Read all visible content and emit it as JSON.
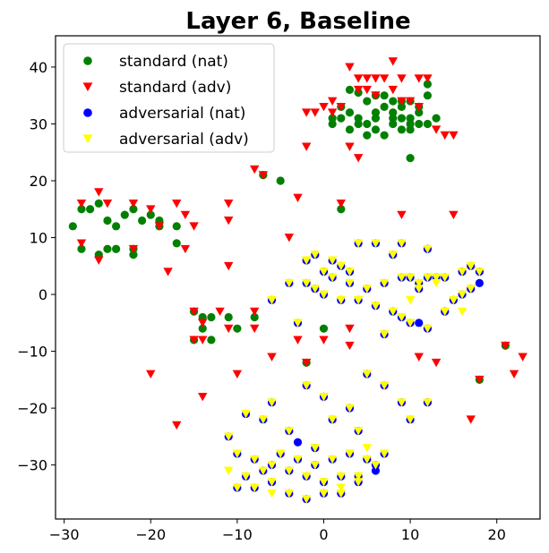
{
  "chart_data": {
    "type": "scatter",
    "title": "Layer 6, Baseline",
    "xlabel": "",
    "ylabel": "",
    "xlim": [
      -31,
      25
    ],
    "ylim": [
      -39.5,
      45.5
    ],
    "xticks": [
      -30,
      -20,
      -10,
      0,
      10,
      20
    ],
    "yticks": [
      -30,
      -20,
      -10,
      0,
      10,
      20,
      30,
      40
    ],
    "grid": false,
    "legend_placement": "top-left",
    "series": [
      {
        "name": "standard (nat)",
        "marker": "circle",
        "color": "#008000",
        "points": [
          [
            3,
            36
          ],
          [
            4,
            35.5
          ],
          [
            5,
            34
          ],
          [
            6,
            35
          ],
          [
            7,
            35
          ],
          [
            8,
            34
          ],
          [
            9,
            33
          ],
          [
            10,
            34
          ],
          [
            11,
            33
          ],
          [
            12,
            35
          ],
          [
            12,
            37
          ],
          [
            6,
            32
          ],
          [
            7,
            33
          ],
          [
            8,
            32
          ],
          [
            9,
            31
          ],
          [
            10,
            30
          ],
          [
            11,
            30
          ],
          [
            12,
            30
          ],
          [
            13,
            31
          ],
          [
            2,
            33
          ],
          [
            3,
            32
          ],
          [
            4,
            31
          ],
          [
            5,
            30
          ],
          [
            6,
            29
          ],
          [
            7,
            28
          ],
          [
            8,
            30
          ],
          [
            9,
            29
          ],
          [
            10,
            29
          ],
          [
            1,
            31
          ],
          [
            1,
            30
          ],
          [
            2,
            31
          ],
          [
            3,
            29
          ],
          [
            4,
            30
          ],
          [
            5,
            28
          ],
          [
            6,
            31
          ],
          [
            8,
            31
          ],
          [
            9,
            34
          ],
          [
            10,
            31
          ],
          [
            11,
            32
          ],
          [
            -29,
            12
          ],
          [
            -28,
            15
          ],
          [
            -27,
            15
          ],
          [
            -26,
            16
          ],
          [
            -25,
            13
          ],
          [
            -24,
            12
          ],
          [
            -23,
            14
          ],
          [
            -22,
            15
          ],
          [
            -21,
            13
          ],
          [
            -20,
            14
          ],
          [
            -19,
            13
          ],
          [
            -19,
            12
          ],
          [
            -28,
            8
          ],
          [
            -26,
            7
          ],
          [
            -25,
            8
          ],
          [
            -24,
            8
          ],
          [
            -22,
            7
          ],
          [
            -22,
            8
          ],
          [
            -17,
            9
          ],
          [
            -17,
            12
          ],
          [
            -7,
            21
          ],
          [
            -5,
            20
          ],
          [
            10,
            24
          ],
          [
            2,
            15
          ],
          [
            -15,
            -3
          ],
          [
            -14,
            -4
          ],
          [
            -13,
            -4
          ],
          [
            -11,
            -4
          ],
          [
            -10,
            -6
          ],
          [
            -13,
            -8
          ],
          [
            -15,
            -8
          ],
          [
            -8,
            -4
          ],
          [
            -14,
            -6
          ],
          [
            0,
            -6
          ],
          [
            18,
            -15
          ],
          [
            21,
            -9
          ],
          [
            -2,
            -12
          ]
        ]
      },
      {
        "name": "standard (adv)",
        "marker": "triangle-down",
        "color": "#ff0000",
        "points": [
          [
            3,
            40
          ],
          [
            4,
            38
          ],
          [
            5,
            38
          ],
          [
            6,
            38
          ],
          [
            7,
            38
          ],
          [
            8,
            41
          ],
          [
            9,
            38
          ],
          [
            11,
            38
          ],
          [
            12,
            38
          ],
          [
            4,
            36
          ],
          [
            5,
            36
          ],
          [
            6,
            35
          ],
          [
            8,
            36
          ],
          [
            9,
            34
          ],
          [
            10,
            34
          ],
          [
            11,
            33
          ],
          [
            1,
            32
          ],
          [
            2,
            33
          ],
          [
            3,
            26
          ],
          [
            4,
            24
          ],
          [
            -2,
            26
          ],
          [
            -1,
            32
          ],
          [
            0,
            33
          ],
          [
            1,
            34
          ],
          [
            14,
            28
          ],
          [
            15,
            28
          ],
          [
            13,
            29
          ],
          [
            -2,
            32
          ],
          [
            -28,
            16
          ],
          [
            -26,
            18
          ],
          [
            -25,
            16
          ],
          [
            -22,
            16
          ],
          [
            -20,
            15
          ],
          [
            -19,
            12
          ],
          [
            -15,
            12
          ],
          [
            -16,
            14
          ],
          [
            -17,
            16
          ],
          [
            -28,
            9
          ],
          [
            -26,
            6
          ],
          [
            -22,
            8
          ],
          [
            -16,
            8
          ],
          [
            -18,
            4
          ],
          [
            -11,
            5
          ],
          [
            -11,
            13
          ],
          [
            -11,
            16
          ],
          [
            -3,
            17
          ],
          [
            -8,
            22
          ],
          [
            -7,
            21
          ],
          [
            -4,
            10
          ],
          [
            2,
            16
          ],
          [
            9,
            14
          ],
          [
            15,
            14
          ],
          [
            -15,
            -3
          ],
          [
            -14,
            -5
          ],
          [
            -12,
            -3
          ],
          [
            -11,
            -6
          ],
          [
            -15,
            -8
          ],
          [
            -14,
            -8
          ],
          [
            -8,
            -3
          ],
          [
            -8,
            -6
          ],
          [
            -6,
            -11
          ],
          [
            -3,
            -8
          ],
          [
            0,
            -8
          ],
          [
            3,
            -6
          ],
          [
            3,
            -9
          ],
          [
            -2,
            -12
          ],
          [
            11,
            -11
          ],
          [
            13,
            -12
          ],
          [
            18,
            -15
          ],
          [
            21,
            -9
          ],
          [
            23,
            -11
          ],
          [
            22,
            -14
          ],
          [
            -14,
            -18
          ],
          [
            -20,
            -14
          ],
          [
            -17,
            -23
          ],
          [
            -10,
            -14
          ],
          [
            17,
            -22
          ]
        ]
      },
      {
        "name": "adversarial (nat)",
        "marker": "circle",
        "color": "#0000ff",
        "points": [
          [
            -1,
            7
          ],
          [
            1,
            6
          ],
          [
            2,
            5
          ],
          [
            4,
            9
          ],
          [
            6,
            9
          ],
          [
            8,
            7
          ],
          [
            9,
            9
          ],
          [
            -2,
            6
          ],
          [
            0,
            4
          ],
          [
            1,
            3
          ],
          [
            3,
            2
          ],
          [
            5,
            1
          ],
          [
            7,
            2
          ],
          [
            9,
            3
          ],
          [
            10,
            3
          ],
          [
            11,
            2
          ],
          [
            12,
            3
          ],
          [
            13,
            3
          ],
          [
            14,
            3
          ],
          [
            16,
            4
          ],
          [
            17,
            5
          ],
          [
            18,
            4
          ],
          [
            18,
            2
          ],
          [
            -2,
            2
          ],
          [
            -1,
            1
          ],
          [
            0,
            0
          ],
          [
            2,
            -1
          ],
          [
            4,
            -1
          ],
          [
            6,
            -2
          ],
          [
            8,
            -3
          ],
          [
            9,
            -4
          ],
          [
            10,
            -5
          ],
          [
            11,
            -5
          ],
          [
            12,
            -6
          ],
          [
            14,
            -3
          ],
          [
            15,
            -1
          ],
          [
            16,
            0
          ],
          [
            17,
            1
          ],
          [
            12,
            8
          ],
          [
            -4,
            2
          ],
          [
            -6,
            -1
          ],
          [
            -3,
            -5
          ],
          [
            7,
            -7
          ],
          [
            3,
            4
          ],
          [
            11,
            1
          ],
          [
            -6,
            -19
          ],
          [
            -7,
            -22
          ],
          [
            -9,
            -21
          ],
          [
            -11,
            -25
          ],
          [
            -10,
            -28
          ],
          [
            -8,
            -29
          ],
          [
            -6,
            -30
          ],
          [
            -4,
            -31
          ],
          [
            -2,
            -32
          ],
          [
            0,
            -33
          ],
          [
            2,
            -32
          ],
          [
            4,
            -32
          ],
          [
            6,
            -30
          ],
          [
            7,
            -28
          ],
          [
            5,
            -29
          ],
          [
            3,
            -28
          ],
          [
            1,
            -29
          ],
          [
            -1,
            -30
          ],
          [
            -3,
            -29
          ],
          [
            -5,
            -28
          ],
          [
            -7,
            -31
          ],
          [
            -9,
            -32
          ],
          [
            -10,
            -34
          ],
          [
            -8,
            -34
          ],
          [
            -6,
            -33
          ],
          [
            -4,
            -35
          ],
          [
            -2,
            -36
          ],
          [
            0,
            -35
          ],
          [
            2,
            -35
          ],
          [
            4,
            -33
          ],
          [
            6,
            -31
          ],
          [
            -1,
            -27
          ],
          [
            -3,
            -26
          ],
          [
            1,
            -22
          ],
          [
            3,
            -20
          ],
          [
            0,
            -18
          ],
          [
            -2,
            -16
          ],
          [
            7,
            -16
          ],
          [
            9,
            -19
          ],
          [
            10,
            -22
          ],
          [
            12,
            -19
          ],
          [
            5,
            -14
          ],
          [
            -4,
            -24
          ],
          [
            4,
            -24
          ]
        ]
      },
      {
        "name": "adversarial (adv)",
        "marker": "triangle-down",
        "color": "#ffff00",
        "points": [
          [
            -1,
            7
          ],
          [
            1,
            6
          ],
          [
            2,
            5
          ],
          [
            4,
            9
          ],
          [
            6,
            9
          ],
          [
            8,
            7
          ],
          [
            9,
            9
          ],
          [
            -2,
            6
          ],
          [
            0,
            4
          ],
          [
            1,
            3
          ],
          [
            3,
            2
          ],
          [
            5,
            1
          ],
          [
            7,
            2
          ],
          [
            9,
            3
          ],
          [
            10,
            3
          ],
          [
            11,
            2
          ],
          [
            12,
            3
          ],
          [
            13,
            3
          ],
          [
            14,
            3
          ],
          [
            16,
            4
          ],
          [
            17,
            5
          ],
          [
            18,
            4
          ],
          [
            -2,
            2
          ],
          [
            -1,
            1
          ],
          [
            0,
            0
          ],
          [
            2,
            -1
          ],
          [
            4,
            -1
          ],
          [
            6,
            -2
          ],
          [
            8,
            -3
          ],
          [
            9,
            -4
          ],
          [
            10,
            -5
          ],
          [
            12,
            -6
          ],
          [
            14,
            -3
          ],
          [
            15,
            -1
          ],
          [
            16,
            0
          ],
          [
            17,
            1
          ],
          [
            12,
            8
          ],
          [
            -4,
            2
          ],
          [
            -6,
            -1
          ],
          [
            -3,
            -5
          ],
          [
            7,
            -7
          ],
          [
            3,
            4
          ],
          [
            11,
            1
          ],
          [
            13,
            2
          ],
          [
            16,
            -3
          ],
          [
            10,
            -1
          ],
          [
            -6,
            -19
          ],
          [
            -7,
            -22
          ],
          [
            -9,
            -21
          ],
          [
            -11,
            -25
          ],
          [
            -10,
            -28
          ],
          [
            -8,
            -29
          ],
          [
            -6,
            -30
          ],
          [
            -4,
            -31
          ],
          [
            -2,
            -32
          ],
          [
            0,
            -33
          ],
          [
            2,
            -32
          ],
          [
            4,
            -32
          ],
          [
            6,
            -30
          ],
          [
            7,
            -28
          ],
          [
            5,
            -29
          ],
          [
            3,
            -28
          ],
          [
            1,
            -29
          ],
          [
            -1,
            -30
          ],
          [
            -3,
            -29
          ],
          [
            -5,
            -28
          ],
          [
            -7,
            -31
          ],
          [
            -9,
            -32
          ],
          [
            -10,
            -34
          ],
          [
            -8,
            -34
          ],
          [
            -6,
            -33
          ],
          [
            -4,
            -35
          ],
          [
            -2,
            -36
          ],
          [
            0,
            -35
          ],
          [
            2,
            -35
          ],
          [
            4,
            -33
          ],
          [
            -1,
            -27
          ],
          [
            1,
            -22
          ],
          [
            3,
            -20
          ],
          [
            0,
            -18
          ],
          [
            -2,
            -16
          ],
          [
            7,
            -16
          ],
          [
            9,
            -19
          ],
          [
            10,
            -22
          ],
          [
            12,
            -19
          ],
          [
            5,
            -14
          ],
          [
            -4,
            -24
          ],
          [
            4,
            -24
          ],
          [
            -11,
            -31
          ],
          [
            -6,
            -35
          ],
          [
            2,
            -34
          ],
          [
            5,
            -27
          ]
        ]
      }
    ]
  }
}
